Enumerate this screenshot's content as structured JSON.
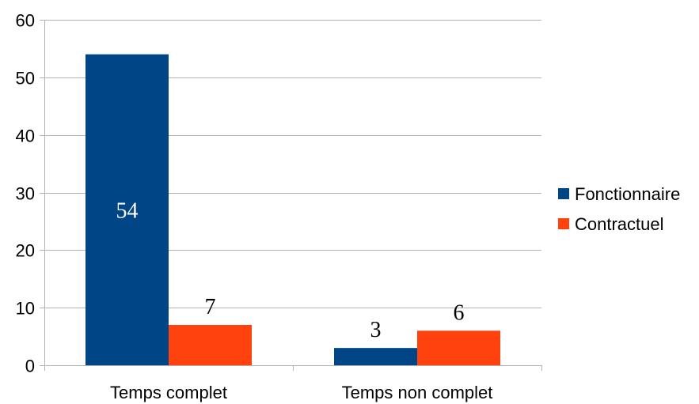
{
  "chart_data": {
    "type": "bar",
    "categories": [
      "Temps complet",
      "Temps non complet"
    ],
    "series": [
      {
        "name": "Fonctionnaire",
        "values": [
          54,
          3
        ],
        "color": "#004586"
      },
      {
        "name": "Contractuel",
        "values": [
          7,
          6
        ],
        "color": "#ff420e"
      }
    ],
    "ylim": [
      0,
      60
    ],
    "yticks": [
      0,
      10,
      20,
      30,
      40,
      50,
      60
    ],
    "grid": true,
    "legend": "right",
    "title": "",
    "xlabel": "",
    "ylabel": "",
    "data_label_colors": {
      "inside": "#ffffff",
      "outside": "#000000"
    }
  }
}
